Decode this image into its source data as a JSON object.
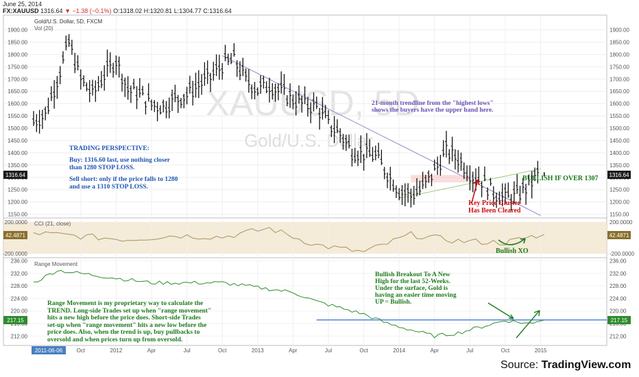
{
  "header": {
    "date": "June 25, 2014",
    "symbol": "FX:XAUUSD",
    "last": "1316.64",
    "change": "▼ −1.38 (−0.1%)",
    "o_label": "O:",
    "o": "1318.02",
    "h_label": "H:",
    "h": "1320.81",
    "l_label": "L:",
    "l": "1304.77",
    "c_label": "C:",
    "c": "1316.64"
  },
  "colors": {
    "price": "#111111",
    "trendline": "#8b86c4",
    "support": "#9ccc7a",
    "cci": "#a89260",
    "cci_band": "#f0e4cc",
    "range": "#2e8b2e",
    "range_level": "#2f6fd6",
    "tag_dark": "#1c1c1c",
    "tag_cci": "#8a6f2d",
    "tag_range": "#2e8b2e",
    "note_blue": "#1f55b0",
    "note_purple": "#6a4fb8",
    "note_green": "#1e7a1e",
    "note_red": "#cc1111"
  },
  "price_panel": {
    "title": "Gold/U.S. Dollar, 5D, FXCM",
    "volume_label": "Vol (20)",
    "watermark_symbol": "XAUUSD, 5D",
    "watermark_name": "Gold/U.S. Dollar",
    "y_ticks": [
      "1900.00",
      "1850.00",
      "1800.00",
      "1750.00",
      "1700.00",
      "1650.00",
      "1600.00",
      "1550.00",
      "1500.00",
      "1450.00",
      "1400.00",
      "1350.00",
      "1300.00",
      "1250.00",
      "1200.00",
      "1150.00"
    ],
    "last_price_tag": "1316.64"
  },
  "cci_panel": {
    "title": "CCI (21, close)",
    "y_ticks": [
      "200.0000",
      "-200.0000"
    ],
    "value_tag": "42.4871"
  },
  "range_panel": {
    "title": "Range Movement",
    "y_ticks": [
      "236.00",
      "232.00",
      "228.00",
      "224.00",
      "220.00",
      "216.00",
      "212.00"
    ],
    "value_tag": "217.15"
  },
  "x_axis": {
    "start_label": "2011-06-06",
    "ticks": [
      "Oct",
      "2012",
      "Apr",
      "Jul",
      "Oct",
      "2013",
      "Apr",
      "Jul",
      "Oct",
      "2014",
      "Apr",
      "Jul",
      "Oct",
      "2015"
    ]
  },
  "annotations": {
    "trading_perspective": [
      "TRADING PERSPECTIVE:",
      "",
      "Buy:  1316.60 last, use nothing closer",
      "than 1280 STOP LOSS.",
      "",
      "Sell short: only if the price falls to 1280",
      "and use a 1310 STOP LOSS."
    ],
    "trendline_note": [
      "21-month trendline from the \"highest lows\"",
      "shows the buyers have the upper hand here."
    ],
    "bullish_label": "BULLISH IF OVER 1307",
    "key_cluster": [
      "Key Price Cluster",
      "Has Been Cleared"
    ],
    "bullish_xo": "Bullish XO",
    "breakout_note": [
      "Bullish Breakout To A New",
      "High for the last 52-Weeks.",
      "Under the surface, Gold is",
      "having an easier time moving",
      "UP = Bullish."
    ],
    "range_note": [
      "Range Movement is my proprietary way to calculate the",
      "TREND.  Long-side Trades set up when \"range movement\"",
      "hits a new high before the price does.  Short-side Trades",
      "set-up when \"range movement\" hits a new low before the",
      "price does.  Also, when the trend is up, buy pullbacks to",
      "oversold and when prices turn up from oversold."
    ]
  },
  "footer": {
    "source_label": "Source:",
    "source_name": "TradingView.com"
  },
  "chart_data": [
    {
      "type": "line",
      "name": "price",
      "title": "Gold/U.S. Dollar, 5D, FXCM",
      "xlabel": "",
      "ylabel": "",
      "ylim": [
        1135,
        1960
      ],
      "x_months_since_2011_06": [
        0,
        1,
        2,
        3,
        4,
        5,
        6,
        7,
        8,
        9,
        10,
        11,
        12,
        13,
        14,
        15,
        16,
        17,
        18,
        19,
        20,
        21,
        22,
        23,
        24,
        25,
        26,
        27,
        28,
        29,
        30,
        31,
        32,
        33,
        34,
        35,
        36,
        37,
        38,
        39,
        40,
        41,
        42,
        43
      ],
      "values": [
        1530,
        1560,
        1700,
        1850,
        1700,
        1640,
        1720,
        1780,
        1660,
        1640,
        1600,
        1590,
        1620,
        1640,
        1680,
        1710,
        1760,
        1780,
        1700,
        1660,
        1680,
        1650,
        1620,
        1600,
        1590,
        1520,
        1480,
        1410,
        1400,
        1390,
        1320,
        1250,
        1230,
        1260,
        1330,
        1410,
        1380,
        1320,
        1290,
        1240,
        1220,
        1230,
        1270,
        1330
      ],
      "points": [
        {
          "x": "2014-06-25",
          "close": 1316.64,
          "open": 1318.02,
          "high": 1320.81,
          "low": 1304.77
        }
      ],
      "trendline": {
        "from": [
          "2012-10",
          1795
        ],
        "to": [
          "2015-01",
          1145
        ]
      },
      "support_line": {
        "from": [
          "2014-01",
          1215
        ],
        "to": [
          "2015-01",
          1335
        ]
      },
      "key_cluster_range": [
        1280,
        1310
      ]
    },
    {
      "type": "line",
      "name": "CCI (21, close)",
      "xlabel": "",
      "ylabel": "",
      "ylim": [
        -250,
        250
      ],
      "band": [
        -200,
        200
      ],
      "x_months_since_2011_06": [
        0,
        4,
        8,
        12,
        16,
        20,
        24,
        28,
        32,
        36,
        40,
        43
      ],
      "values": [
        60,
        20,
        -20,
        30,
        10,
        120,
        -90,
        -180,
        40,
        -40,
        -60,
        42.4871
      ]
    },
    {
      "type": "line",
      "name": "Range Movement",
      "xlabel": "",
      "ylabel": "",
      "ylim": [
        209,
        237
      ],
      "x_months_since_2011_06": [
        0,
        2,
        4,
        6,
        8,
        10,
        12,
        14,
        16,
        18,
        20,
        22,
        24,
        26,
        28,
        30,
        32,
        34,
        36,
        38,
        40,
        42,
        43
      ],
      "values": [
        229,
        233,
        232,
        231,
        230,
        229,
        229,
        229,
        229,
        228,
        227,
        226,
        223,
        221,
        219,
        216,
        214,
        212,
        213,
        215,
        217,
        216,
        217.15
      ],
      "level_line": 217.15
    }
  ]
}
